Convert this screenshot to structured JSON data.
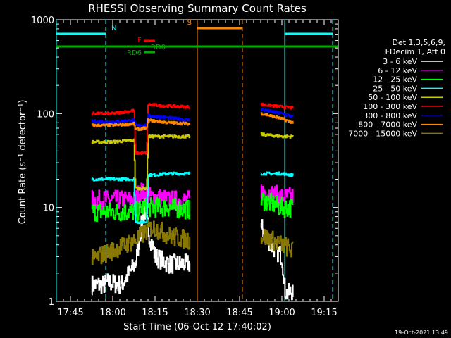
{
  "chart_data": {
    "type": "line",
    "title": "RHESSI Observing Summary Count Rates",
    "xlabel": "Start Time (06-Oct-12 17:40:02)",
    "ylabel": "Count Rate (s⁻¹ detector⁻¹)",
    "yscale": "log",
    "ylim": [
      1,
      1000
    ],
    "xlim_minutes": [
      0,
      100
    ],
    "x_ticks": [
      {
        "t": 5,
        "label": "17:45"
      },
      {
        "t": 20,
        "label": "18:00"
      },
      {
        "t": 35,
        "label": "18:15"
      },
      {
        "t": 50,
        "label": "18:30"
      },
      {
        "t": 65,
        "label": "18:45"
      },
      {
        "t": 80,
        "label": "19:00"
      },
      {
        "t": 95,
        "label": "19:15"
      }
    ],
    "y_ticks": [
      {
        "v": 1,
        "label": "1"
      },
      {
        "v": 10,
        "label": "10"
      },
      {
        "v": 100,
        "label": "100"
      },
      {
        "v": 1000,
        "label": "1000"
      }
    ],
    "legend_title": [
      "Det 1,3,5,6,9,",
      "FDecim 1, Att 0"
    ],
    "series": [
      {
        "name": "3 - 6 keV",
        "color": "#ffffff",
        "segments": [
          [
            12.5,
            1.5
          ],
          [
            17,
            1.5
          ],
          [
            18,
            1.6
          ],
          [
            23,
            1.5
          ],
          [
            28,
            2.5
          ],
          [
            30,
            6
          ],
          [
            31,
            10
          ],
          [
            33,
            5
          ],
          [
            34,
            4
          ],
          [
            35,
            3
          ],
          [
            40,
            2.5
          ],
          [
            47,
            2.5
          ],
          [
            73,
            6
          ],
          [
            76,
            4
          ],
          [
            80,
            3
          ],
          [
            81,
            1.3
          ],
          [
            82,
            1.2
          ],
          [
            84,
            1.3
          ]
        ],
        "gap": [
          47.5,
          72.5
        ]
      },
      {
        "name": "6 - 12 keV",
        "color": "#ff00ff",
        "segments": [
          [
            12.5,
            12
          ],
          [
            28,
            12
          ],
          [
            29,
            14
          ],
          [
            30,
            15
          ],
          [
            31,
            14
          ],
          [
            33,
            13
          ],
          [
            35,
            13
          ],
          [
            40,
            12
          ],
          [
            47,
            12
          ],
          [
            73,
            15
          ],
          [
            80,
            13
          ],
          [
            84,
            13
          ]
        ],
        "gap": [
          47.5,
          72.5
        ]
      },
      {
        "name": "12 - 25 keV",
        "color": "#00ff00",
        "segments": [
          [
            12.5,
            9
          ],
          [
            20,
            9
          ],
          [
            28,
            9
          ],
          [
            29,
            9
          ],
          [
            30,
            10
          ],
          [
            33,
            10
          ],
          [
            35,
            10
          ],
          [
            40,
            10
          ],
          [
            47,
            9.5
          ],
          [
            73,
            12
          ],
          [
            80,
            10
          ],
          [
            84,
            10
          ]
        ],
        "gap": [
          47.5,
          72.5
        ]
      },
      {
        "name": "25 - 50 keV",
        "color": "#00ffff",
        "segments": [
          [
            12.5,
            20
          ],
          [
            20,
            20
          ],
          [
            27.5,
            20
          ],
          [
            28,
            7
          ],
          [
            32,
            7
          ],
          [
            32.5,
            22
          ],
          [
            40,
            23
          ],
          [
            47,
            23
          ],
          [
            73,
            23
          ],
          [
            80,
            23
          ],
          [
            84,
            22
          ]
        ],
        "gap": [
          47.5,
          72.5
        ]
      },
      {
        "name": "50 - 100 keV",
        "color": "#cccc00",
        "segments": [
          [
            12.5,
            50
          ],
          [
            20,
            50
          ],
          [
            27.5,
            52
          ],
          [
            28,
            16
          ],
          [
            32,
            16
          ],
          [
            32.5,
            57
          ],
          [
            40,
            57
          ],
          [
            47,
            57
          ],
          [
            73,
            60
          ],
          [
            80,
            57
          ],
          [
            84,
            57
          ]
        ],
        "gap": [
          47.5,
          72.5
        ]
      },
      {
        "name": "100 - 300 keV",
        "color": "#ff0000",
        "segments": [
          [
            12.5,
            100
          ],
          [
            20,
            100
          ],
          [
            27.5,
            108
          ],
          [
            28,
            38
          ],
          [
            32,
            38
          ],
          [
            32.5,
            125
          ],
          [
            40,
            120
          ],
          [
            47,
            118
          ],
          [
            73,
            125
          ],
          [
            80,
            118
          ],
          [
            84,
            115
          ]
        ],
        "gap": [
          47.5,
          72.5
        ]
      },
      {
        "name": "300 - 800 keV",
        "color": "#0000ff",
        "segments": [
          [
            12.5,
            83
          ],
          [
            20,
            82
          ],
          [
            27.5,
            85
          ],
          [
            28,
            74
          ],
          [
            32,
            76
          ],
          [
            32.5,
            95
          ],
          [
            40,
            90
          ],
          [
            47,
            85
          ],
          [
            73,
            110
          ],
          [
            80,
            100
          ],
          [
            84,
            92
          ]
        ],
        "gap": [
          47.5,
          72.5
        ]
      },
      {
        "name": "800 - 7000 keV",
        "color": "#ff8800",
        "segments": [
          [
            12.5,
            75
          ],
          [
            20,
            75
          ],
          [
            27.5,
            78
          ],
          [
            28,
            68
          ],
          [
            32,
            70
          ],
          [
            32.5,
            85
          ],
          [
            40,
            80
          ],
          [
            47,
            78
          ],
          [
            73,
            100
          ],
          [
            80,
            88
          ],
          [
            84,
            80
          ]
        ],
        "gap": [
          47.5,
          72.5
        ]
      },
      {
        "name": "7000 - 15000 keV",
        "color": "#887700",
        "segments": [
          [
            12.5,
            2.8
          ],
          [
            20,
            3.5
          ],
          [
            28,
            4.5
          ],
          [
            30,
            5
          ],
          [
            33,
            6
          ],
          [
            35,
            6
          ],
          [
            40,
            5
          ],
          [
            47,
            4.5
          ],
          [
            73,
            5
          ],
          [
            80,
            4
          ],
          [
            84,
            3.5
          ]
        ],
        "gap": [
          47.5,
          72.5
        ]
      }
    ],
    "annotations": [
      {
        "label": "N",
        "color": "#00ffff",
        "kind": "night",
        "intervals": [
          [
            0,
            17.5
          ],
          [
            81,
            98
          ]
        ],
        "level_px": 48
      },
      {
        "label": "S",
        "color": "#ff8800",
        "kind": "saa",
        "intervals": [
          [
            50,
            66
          ]
        ],
        "level_px": 40
      },
      {
        "label": "F",
        "color": "#ff0000",
        "kind": "flare",
        "intervals": [
          [
            31,
            35
          ]
        ],
        "level_px": 58
      },
      {
        "label": "RD0",
        "color": "#00aa00",
        "kind": "rate-data",
        "intervals": [
          [
            31,
            35
          ]
        ],
        "level_px": 66
      },
      {
        "label": "RD6",
        "color": "#00aa00",
        "kind": "rate-data",
        "intervals": [
          [
            31,
            35
          ]
        ],
        "level_px": 74
      },
      {
        "label": "",
        "color": "#00aa00",
        "kind": "long",
        "intervals": [
          [
            0,
            100
          ]
        ],
        "level_px": 66
      }
    ],
    "vertical_markers": [
      {
        "t": 0,
        "color": "#00ffff",
        "style": "solid"
      },
      {
        "t": 17.5,
        "color": "#00ffff",
        "style": "dashed"
      },
      {
        "t": 50,
        "color": "#ff8800",
        "style": "solid"
      },
      {
        "t": 66,
        "color": "#ff8800",
        "style": "dashed"
      },
      {
        "t": 81,
        "color": "#00ffff",
        "style": "solid"
      },
      {
        "t": 98,
        "color": "#00ffff",
        "style": "dashed"
      }
    ],
    "timestamp": "19-Oct-2021 13:49"
  }
}
